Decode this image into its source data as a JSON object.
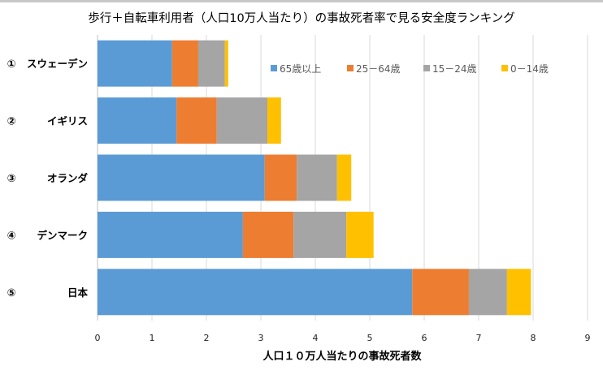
{
  "chart_data": {
    "type": "bar",
    "orientation": "horizontal",
    "stacked": true,
    "title": "歩行＋自転車利用者（人口10万人当たり）の事故死者率で見る安全度ランキング",
    "xlabel": "人口１０万人当たりの事故死者数",
    "ylabel": "",
    "xlim": [
      0,
      9
    ],
    "xticks": [
      "0",
      "1",
      "2",
      "3",
      "4",
      "5",
      "6",
      "7",
      "8",
      "9"
    ],
    "grid": true,
    "legend_position": "top-right",
    "categories": [
      "① スウェーデン",
      "② イギリス",
      "③ オランダ",
      "④ デンマーク",
      "⑤ 日本"
    ],
    "rank_labels": [
      "①",
      "②",
      "③",
      "④",
      "⑤"
    ],
    "country_labels": [
      "スウェーデン",
      "イギリス",
      "オランダ",
      "デンマーク",
      "日本"
    ],
    "series": [
      {
        "name": "65歳以上",
        "color": "#5b9bd5",
        "values": [
          1.37,
          1.45,
          3.07,
          2.67,
          5.78
        ]
      },
      {
        "name": "25－64歳",
        "color": "#ed7d31",
        "values": [
          0.48,
          0.74,
          0.59,
          0.93,
          1.04
        ]
      },
      {
        "name": "15－24歳",
        "color": "#a5a5a5",
        "values": [
          0.49,
          0.93,
          0.74,
          0.97,
          0.7
        ]
      },
      {
        "name": "0－14歳",
        "color": "#ffc000",
        "values": [
          0.06,
          0.25,
          0.26,
          0.5,
          0.44
        ]
      }
    ]
  }
}
